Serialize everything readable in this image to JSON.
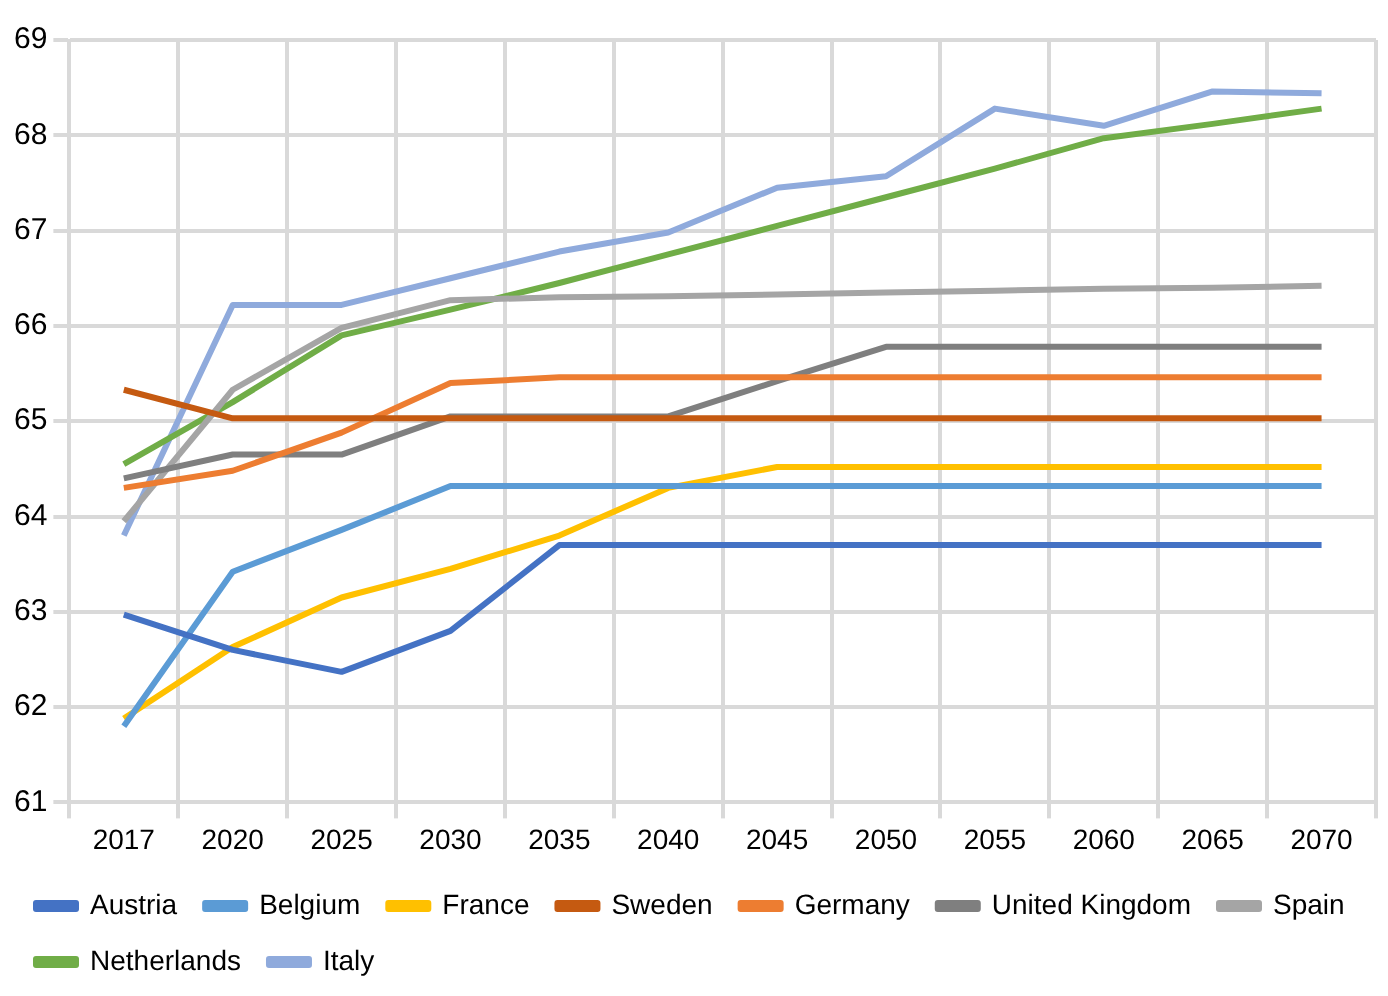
{
  "chart_data": {
    "type": "line",
    "categories": [
      "2017",
      "2020",
      "2025",
      "2030",
      "2035",
      "2040",
      "2045",
      "2050",
      "2055",
      "2060",
      "2065",
      "2070"
    ],
    "ylim": [
      61,
      69
    ],
    "yticks": [
      61,
      62,
      63,
      64,
      65,
      66,
      67,
      68,
      69
    ],
    "grid": true,
    "legend": "bottom",
    "marker": "none",
    "line_style": "solid",
    "series": [
      {
        "name": "Austria",
        "color": "#4472c4",
        "values": [
          62.97,
          62.6,
          62.37,
          62.8,
          63.7,
          63.7,
          63.7,
          63.7,
          63.7,
          63.7,
          63.7,
          63.7
        ]
      },
      {
        "name": "Belgium",
        "color": "#5b9bd5",
        "values": [
          61.8,
          63.42,
          63.86,
          64.32,
          64.32,
          64.32,
          64.32,
          64.32,
          64.32,
          64.32,
          64.32,
          64.32
        ]
      },
      {
        "name": "France",
        "color": "#ffc000",
        "values": [
          61.88,
          62.63,
          63.15,
          63.45,
          63.8,
          64.3,
          64.52,
          64.52,
          64.52,
          64.52,
          64.52,
          64.52
        ]
      },
      {
        "name": "Sweden",
        "color": "#c55a11",
        "values": [
          65.33,
          65.03,
          65.03,
          65.03,
          65.03,
          65.03,
          65.03,
          65.03,
          65.03,
          65.03,
          65.03,
          65.03
        ]
      },
      {
        "name": "Germany",
        "color": "#ed7d31",
        "values": [
          64.3,
          64.48,
          64.88,
          65.4,
          65.46,
          65.46,
          65.46,
          65.46,
          65.46,
          65.46,
          65.46,
          65.46
        ]
      },
      {
        "name": "United Kingdom",
        "color": "#7f7f7f",
        "values": [
          64.4,
          64.65,
          64.65,
          65.05,
          65.05,
          65.05,
          65.42,
          65.78,
          65.78,
          65.78,
          65.78,
          65.78
        ]
      },
      {
        "name": "Spain",
        "color": "#a5a5a5",
        "values": [
          63.95,
          65.33,
          65.98,
          66.27,
          66.3,
          66.31,
          66.33,
          66.35,
          66.37,
          66.39,
          66.4,
          66.42
        ]
      },
      {
        "name": "Netherlands",
        "color": "#70ad47",
        "values": [
          64.55,
          65.2,
          65.9,
          66.17,
          66.45,
          66.75,
          67.05,
          67.35,
          67.65,
          67.97,
          68.12,
          68.28
        ]
      },
      {
        "name": "Italy",
        "color": "#8faadc",
        "values": [
          63.8,
          66.22,
          66.22,
          66.5,
          66.78,
          66.98,
          67.45,
          67.57,
          68.28,
          68.1,
          68.46,
          68.44
        ]
      }
    ]
  }
}
